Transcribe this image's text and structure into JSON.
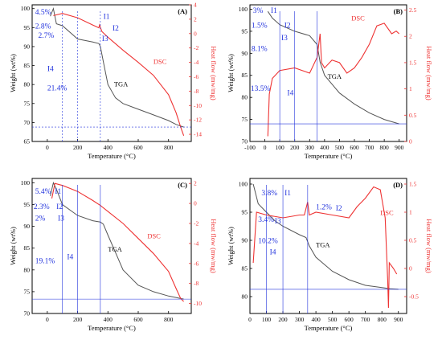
{
  "colors": {
    "tga": "#555555",
    "dsc": "#ee3333",
    "annotation": "#2233dd",
    "axis": "#000000"
  },
  "chart_data": [
    {
      "panel": "(A)",
      "type": "line",
      "xlabel": "Temperature (°C)",
      "ylabel": "Weight (wt%)",
      "y2label": "Heat flow (mw/mg)",
      "xlim": [
        -100,
        950
      ],
      "ylim": [
        65,
        101
      ],
      "y2lim": [
        -15,
        4
      ],
      "xticks": [
        0,
        200,
        400,
        600,
        800
      ],
      "yticks": [
        65,
        70,
        75,
        80,
        85,
        90,
        95,
        100
      ],
      "y2ticks": [
        -14,
        -12,
        -10,
        -8,
        -6,
        -4,
        -2,
        0,
        2,
        4
      ],
      "series": [
        {
          "name": "TGA",
          "axis": "left",
          "x": [
            20,
            40,
            60,
            100,
            200,
            300,
            340,
            350,
            370,
            400,
            450,
            500,
            600,
            700,
            800,
            850,
            900
          ],
          "y": [
            98,
            100,
            96,
            95.5,
            92,
            91.2,
            90.8,
            90,
            86,
            80,
            76.5,
            75,
            73.5,
            72,
            70.5,
            69.5,
            68.8
          ]
        },
        {
          "name": "DSC",
          "axis": "right",
          "x": [
            40,
            100,
            200,
            300,
            340,
            345,
            360,
            400,
            500,
            600,
            700,
            800,
            850,
            880,
            900
          ],
          "y": [
            2.5,
            2.8,
            2.2,
            1.2,
            0.8,
            1.2,
            0.3,
            -0.5,
            -2.3,
            -4,
            -5.8,
            -8.5,
            -11,
            -13,
            -14.2
          ]
        }
      ],
      "annotations": [
        {
          "label": "4.5%",
          "x": -80,
          "y": 98.5
        },
        {
          "label": "2.8%",
          "x": -80,
          "y": 94.8
        },
        {
          "label": "2.7%",
          "x": -60,
          "y": 92.3
        },
        {
          "label": "I4",
          "x": 0,
          "y": 83.5
        },
        {
          "label": "21.4%",
          "x": 0,
          "y": 78.5
        },
        {
          "label": "I1",
          "x": 370,
          "y": 97.3
        },
        {
          "label": "I2",
          "x": 430,
          "y": 94.2
        },
        {
          "label": "I3",
          "x": 360,
          "y": 91.5
        },
        {
          "label": "TGA",
          "x": 440,
          "y": 79.5
        },
        {
          "label": "DSC",
          "x": 700,
          "y": -4.2,
          "axis": "right"
        }
      ]
    },
    {
      "panel": "(B)",
      "type": "line",
      "xlabel": "Temperature (°C)",
      "ylabel": "Weight (wt%)",
      "y2label": "Heat flow (mw/mg)",
      "xlim": [
        -100,
        950
      ],
      "ylim": [
        70,
        101
      ],
      "y2lim": [
        0,
        2.6
      ],
      "xticks": [
        -100,
        0,
        100,
        200,
        300,
        400,
        500,
        600,
        700,
        800,
        900
      ],
      "yticks": [
        70,
        75,
        80,
        85,
        90,
        95,
        100
      ],
      "y2ticks": [
        0,
        0.5,
        1.0,
        1.5,
        2.0,
        2.5
      ],
      "series": [
        {
          "name": "TGA",
          "axis": "left",
          "x": [
            20,
            50,
            100,
            200,
            300,
            350,
            370,
            400,
            450,
            500,
            600,
            700,
            800,
            900
          ],
          "y": [
            99.5,
            98,
            96.5,
            95,
            94,
            92,
            88,
            85,
            83,
            81,
            78.5,
            76.5,
            75,
            74
          ]
        },
        {
          "name": "DSC",
          "axis": "right",
          "x": [
            20,
            30,
            50,
            100,
            200,
            300,
            350,
            370,
            380,
            400,
            450,
            500,
            550,
            600,
            650,
            700,
            750,
            800,
            850,
            880,
            900
          ],
          "y": [
            0.1,
            0.9,
            1.2,
            1.35,
            1.4,
            1.3,
            1.6,
            2.05,
            1.5,
            1.4,
            1.55,
            1.5,
            1.3,
            1.4,
            1.6,
            1.85,
            2.2,
            2.25,
            2.05,
            2.1,
            2.05
          ]
        }
      ],
      "annotations": [
        {
          "label": "3%",
          "x": -80,
          "y": 99.2
        },
        {
          "label": "I1",
          "x": 40,
          "y": 99.2
        },
        {
          "label": "1.5%",
          "x": -90,
          "y": 95.8
        },
        {
          "label": "I2",
          "x": 130,
          "y": 95.8
        },
        {
          "label": "I3",
          "x": 110,
          "y": 93
        },
        {
          "label": "8.1%",
          "x": -90,
          "y": 90.5
        },
        {
          "label": "13.5%",
          "x": -95,
          "y": 81.5
        },
        {
          "label": "I4",
          "x": 150,
          "y": 80.5
        },
        {
          "label": "TGA",
          "x": 420,
          "y": 84.2
        },
        {
          "label": "DSC",
          "x": 580,
          "y": 2.3,
          "axis": "right"
        }
      ]
    },
    {
      "panel": "(C)",
      "type": "line",
      "xlabel": "Temperature (°C)",
      "ylabel": "Weight (wt%)",
      "y2label": "Heat flow (mw/mg)",
      "xlim": [
        -100,
        950
      ],
      "ylim": [
        70,
        101
      ],
      "y2lim": [
        -11,
        2.5
      ],
      "xticks": [
        0,
        200,
        400,
        600,
        800
      ],
      "yticks": [
        70,
        75,
        80,
        85,
        90,
        95,
        100
      ],
      "y2ticks": [
        -10,
        -8,
        -6,
        -4,
        -2,
        0,
        2
      ],
      "series": [
        {
          "name": "TGA",
          "axis": "left",
          "x": [
            20,
            40,
            60,
            100,
            200,
            300,
            350,
            370,
            400,
            450,
            500,
            600,
            700,
            800,
            900
          ],
          "y": [
            97,
            100,
            98.5,
            95,
            92.5,
            91.3,
            91,
            90.5,
            88,
            84,
            80,
            76.5,
            75,
            74,
            73.3
          ]
        },
        {
          "name": "DSC",
          "axis": "right",
          "x": [
            30,
            50,
            100,
            150,
            200,
            300,
            350,
            400,
            500,
            600,
            700,
            800,
            850,
            880,
            900
          ],
          "y": [
            0.5,
            2,
            1.8,
            1.5,
            1.2,
            0.3,
            -0.2,
            -0.8,
            -2,
            -3.5,
            -5,
            -6.8,
            -8.5,
            -9.5,
            -9.8
          ]
        }
      ],
      "annotations": [
        {
          "label": "5.4%",
          "x": -80,
          "y": 97.5
        },
        {
          "label": "I1",
          "x": 50,
          "y": 97.5
        },
        {
          "label": "2.3%",
          "x": -90,
          "y": 94
        },
        {
          "label": "I2",
          "x": 60,
          "y": 94
        },
        {
          "label": "2%",
          "x": -80,
          "y": 91.3
        },
        {
          "label": "I3",
          "x": 70,
          "y": 91.3
        },
        {
          "label": "19.1%",
          "x": -80,
          "y": 81.5
        },
        {
          "label": "I4",
          "x": 130,
          "y": 82.5
        },
        {
          "label": "TGA",
          "x": 400,
          "y": 84.2
        },
        {
          "label": "DSC",
          "x": 660,
          "y": -3.5,
          "axis": "right"
        }
      ]
    },
    {
      "panel": "(D)",
      "type": "line",
      "xlabel": "Temperature (°C)",
      "ylabel": "Weight (wt%)",
      "y2label": "Heat flow (mw/mg)",
      "xlim": [
        0,
        950
      ],
      "ylim": [
        77,
        101
      ],
      "y2lim": [
        -0.8,
        1.6
      ],
      "xticks": [
        0,
        100,
        200,
        300,
        400,
        500,
        600,
        700,
        800,
        900
      ],
      "yticks": [
        80,
        85,
        90,
        95,
        100
      ],
      "y2ticks": [
        -0.5,
        0,
        0.5,
        1.0,
        1.5
      ],
      "series": [
        {
          "name": "TGA",
          "axis": "left",
          "x": [
            20,
            50,
            100,
            150,
            200,
            300,
            340,
            360,
            400,
            500,
            600,
            700,
            800,
            850,
            900
          ],
          "y": [
            100,
            96.5,
            95,
            93.5,
            92.5,
            91,
            90.5,
            89,
            87,
            84.5,
            83,
            82,
            81.6,
            81.4,
            81.3
          ]
        },
        {
          "name": "DSC",
          "axis": "right",
          "x": [
            20,
            40,
            100,
            200,
            300,
            330,
            350,
            360,
            400,
            500,
            600,
            650,
            700,
            750,
            790,
            820,
            835,
            840,
            845,
            870,
            890
          ],
          "y": [
            0.1,
            1.0,
            0.95,
            0.9,
            0.95,
            0.95,
            1.18,
            0.95,
            1.0,
            0.95,
            0.9,
            1.1,
            1.25,
            1.45,
            1.4,
            0.9,
            -0.2,
            -0.7,
            0.1,
            0.0,
            -0.1
          ]
        }
      ],
      "annotations": [
        {
          "label": "3.8%",
          "x": 70,
          "y": 98
        },
        {
          "label": "I1",
          "x": 210,
          "y": 98
        },
        {
          "label": "1.2%",
          "x": 400,
          "y": 95.5
        },
        {
          "label": "I2",
          "x": 520,
          "y": 95.3
        },
        {
          "label": "3.4%",
          "x": 50,
          "y": 93.3
        },
        {
          "label": "I3",
          "x": 150,
          "y": 93
        },
        {
          "label": "10.2%",
          "x": 50,
          "y": 89.5
        },
        {
          "label": "I4",
          "x": 120,
          "y": 87.5
        },
        {
          "label": "TGA",
          "x": 400,
          "y": 88.8
        },
        {
          "label": "DSC",
          "x": 790,
          "y": 0.95,
          "axis": "right"
        }
      ]
    }
  ]
}
